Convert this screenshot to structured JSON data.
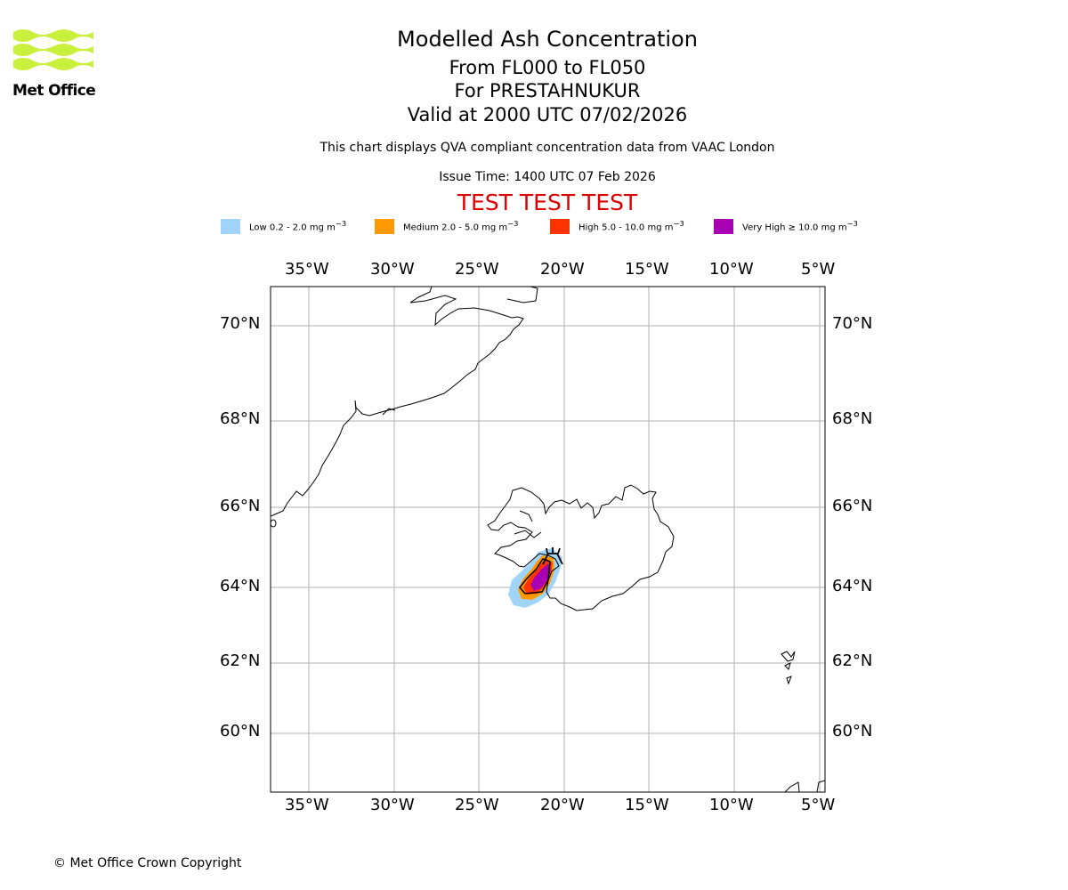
{
  "header": {
    "title": "Modelled Ash Concentration",
    "level_range": "From FL000 to FL050",
    "volcano": "For PRESTAHNUKUR",
    "valid_time": "Valid at 2000 UTC 07/02/2026",
    "subtitle": "This chart displays QVA compliant concentration data from VAAC London",
    "issue_time": "Issue Time: 1400 UTC 07 Feb 2026",
    "test_banner": "TEST TEST TEST",
    "test_color": "#dd0000"
  },
  "logo": {
    "text": "Met Office",
    "color": "#c8f03c"
  },
  "legend": [
    {
      "label_html": "Low 0.2 - 2.0 mg m<sup>−3</sup>",
      "color": "#a0d4fa"
    },
    {
      "label_html": "Medium 2.0 - 5.0 mg m<sup>−3</sup>",
      "color": "#ff9900"
    },
    {
      "label_html": "High 5.0 - 10.0 mg m<sup>−3</sup>",
      "color": "#ff3300"
    },
    {
      "label_html": "Very High ≥ 10.0 mg m<sup>−3</sup>",
      "color": "#aa00b4"
    }
  ],
  "map": {
    "lon_labels": [
      "35°W",
      "30°W",
      "25°W",
      "20°W",
      "15°W",
      "10°W",
      "5°W"
    ],
    "lat_labels": [
      "70°N",
      "68°N",
      "66°N",
      "64°N",
      "62°N",
      "60°N"
    ],
    "grid": true
  },
  "footer": {
    "copyright": "© Met Office Crown Copyright"
  }
}
